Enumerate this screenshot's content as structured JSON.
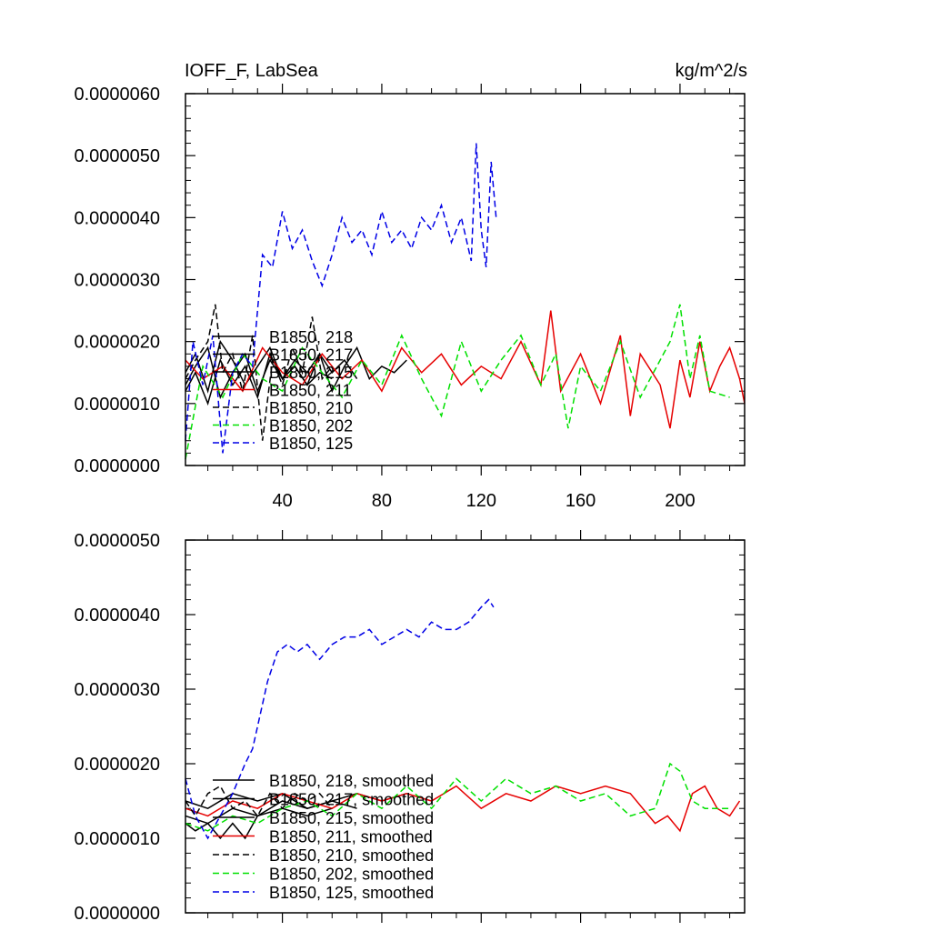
{
  "chart_data": [
    {
      "type": "line",
      "title": "IOFF_F, LabSea",
      "units_label": "kg/m^2/s",
      "xlim": [
        1,
        226
      ],
      "ylim": [
        0,
        6e-06
      ],
      "x_ticks": [
        40,
        80,
        120,
        160,
        200
      ],
      "x_tick_labels": [
        "40",
        "80",
        "120",
        "160",
        "200"
      ],
      "y_ticks": [
        0,
        1e-06,
        2e-06,
        3e-06,
        4e-06,
        5e-06,
        6e-06
      ],
      "y_tick_labels": [
        "0.0000000",
        "0.0000010",
        "0.0000020",
        "0.0000030",
        "0.0000040",
        "0.0000050",
        "0.0000060"
      ],
      "legend_placement": "lower-left",
      "series": [
        {
          "name": "B1850, 218",
          "color": "#000000",
          "dash": "solid",
          "x": [
            1,
            5,
            10,
            15,
            20,
            25,
            30,
            35,
            40,
            45,
            50,
            55,
            60,
            65,
            70,
            75,
            80,
            85,
            90
          ],
          "y": [
            1.5e-06,
            1.8e-06,
            1.2e-06,
            2e-06,
            1.7e-06,
            1.3e-06,
            1.6e-06,
            1.9e-06,
            1.4e-06,
            1.7e-06,
            1.5e-06,
            1.8e-06,
            1.2e-06,
            1.6e-06,
            1.9e-06,
            1.4e-06,
            1.6e-06,
            1.5e-06,
            1.7e-06
          ]
        },
        {
          "name": "B1850, 217",
          "color": "#000000",
          "dash": "solid",
          "x": [
            1,
            5,
            10,
            15,
            20,
            25,
            30,
            35,
            40,
            45,
            50,
            55,
            60,
            65,
            70
          ],
          "y": [
            1.3e-06,
            1.6e-06,
            1.9e-06,
            1.1e-06,
            1.5e-06,
            1.8e-06,
            1.2e-06,
            1.7e-06,
            1.4e-06,
            1.6e-06,
            1.3e-06,
            1.8e-06,
            1.5e-06,
            1.7e-06,
            1.4e-06
          ]
        },
        {
          "name": "B1850, 215",
          "color": "#000000",
          "dash": "solid",
          "x": [
            1,
            5,
            10,
            15,
            20,
            25,
            30,
            35,
            40,
            45,
            50,
            55,
            60
          ],
          "y": [
            1.2e-06,
            1.5e-06,
            1e-06,
            1.7e-06,
            1.3e-06,
            1.6e-06,
            1.1e-06,
            1.8e-06,
            1.4e-06,
            1.6e-06,
            1.3e-06,
            1.5e-06,
            1.4e-06
          ]
        },
        {
          "name": "B1850, 211",
          "color": "#e60000",
          "dash": "solid",
          "x": [
            1,
            8,
            16,
            24,
            32,
            40,
            48,
            56,
            64,
            72,
            80,
            88,
            96,
            104,
            112,
            120,
            128,
            136,
            144,
            148,
            152,
            160,
            168,
            176,
            180,
            184,
            192,
            196,
            200,
            204,
            208,
            212,
            216,
            220,
            224,
            226
          ],
          "y": [
            1.7e-06,
            1.4e-06,
            1.6e-06,
            1.2e-06,
            1.9e-06,
            1.5e-06,
            1.3e-06,
            1.8e-06,
            1.4e-06,
            1.7e-06,
            1.2e-06,
            1.9e-06,
            1.5e-06,
            1.8e-06,
            1.3e-06,
            1.6e-06,
            1.4e-06,
            2e-06,
            1.3e-06,
            2.5e-06,
            1.2e-06,
            1.8e-06,
            1e-06,
            2.1e-06,
            8e-07,
            1.8e-06,
            1.3e-06,
            6e-07,
            1.7e-06,
            1.1e-06,
            2e-06,
            1.2e-06,
            1.6e-06,
            1.9e-06,
            1.4e-06,
            1e-06
          ]
        },
        {
          "name": "B1850, 210",
          "color": "#000000",
          "dash": "dash",
          "x": [
            1,
            5,
            10,
            13,
            16,
            20,
            24,
            28,
            32,
            36,
            40,
            44,
            48,
            52,
            56,
            60
          ],
          "y": [
            1.4e-06,
            1.7e-06,
            2e-06,
            2.6e-06,
            1.5e-06,
            1.8e-06,
            1.2e-06,
            2.1e-06,
            4e-07,
            1.7e-06,
            1.3e-06,
            1.9e-06,
            1.5e-06,
            2.4e-06,
            1.4e-06,
            1.6e-06
          ]
        },
        {
          "name": "B1850, 202",
          "color": "#00e000",
          "dash": "dash",
          "x": [
            1,
            8,
            16,
            24,
            32,
            40,
            48,
            56,
            64,
            72,
            80,
            88,
            96,
            104,
            112,
            120,
            128,
            136,
            144,
            150,
            155,
            160,
            168,
            176,
            184,
            192,
            196,
            200,
            204,
            208,
            212,
            220
          ],
          "y": [
            1e-07,
            1.6e-06,
            1.1e-06,
            1.8e-06,
            1.4e-06,
            1.2e-06,
            1.9e-06,
            1.5e-06,
            1.1e-06,
            1.7e-06,
            1.3e-06,
            2.1e-06,
            1.4e-06,
            8e-07,
            2e-06,
            1.2e-06,
            1.7e-06,
            2.1e-06,
            1.3e-06,
            1.8e-06,
            6e-07,
            1.6e-06,
            1.2e-06,
            2e-06,
            1.1e-06,
            1.7e-06,
            2e-06,
            2.6e-06,
            1.4e-06,
            2.1e-06,
            1.2e-06,
            1.1e-06
          ]
        },
        {
          "name": "B1850, 125",
          "color": "#0000e6",
          "dash": "dash",
          "x": [
            1,
            4,
            8,
            12,
            16,
            20,
            24,
            28,
            32,
            36,
            40,
            44,
            48,
            52,
            56,
            60,
            64,
            68,
            72,
            76,
            80,
            84,
            88,
            92,
            96,
            100,
            104,
            108,
            112,
            116,
            118,
            120,
            122,
            124,
            126
          ],
          "y": [
            4e-07,
            2e-06,
            1.3e-06,
            2.1e-06,
            2e-07,
            1.5e-06,
            1.8e-06,
            1.6e-06,
            3.4e-06,
            3.2e-06,
            4.1e-06,
            3.5e-06,
            3.8e-06,
            3.3e-06,
            2.9e-06,
            3.4e-06,
            4e-06,
            3.6e-06,
            3.8e-06,
            3.4e-06,
            4.1e-06,
            3.6e-06,
            3.8e-06,
            3.5e-06,
            4e-06,
            3.8e-06,
            4.2e-06,
            3.6e-06,
            4e-06,
            3.3e-06,
            5.2e-06,
            3.8e-06,
            3.2e-06,
            4.9e-06,
            4e-06
          ]
        }
      ]
    },
    {
      "type": "line",
      "xlim": [
        1,
        226
      ],
      "ylim": [
        0,
        5e-06
      ],
      "x_ticks": [
        40,
        80,
        120,
        160,
        200
      ],
      "y_ticks": [
        0,
        1e-06,
        2e-06,
        3e-06,
        4e-06,
        5e-06
      ],
      "y_tick_labels": [
        "0.0000000",
        "0.0000010",
        "0.0000020",
        "0.0000030",
        "0.0000040",
        "0.0000050"
      ],
      "legend_placement": "lower-left",
      "series": [
        {
          "name": "B1850, 218, smoothed",
          "color": "#000000",
          "dash": "solid",
          "x": [
            1,
            10,
            20,
            30,
            40,
            50,
            60,
            70,
            80,
            90
          ],
          "y": [
            1.5e-06,
            1.4e-06,
            1.6e-06,
            1.5e-06,
            1.6e-06,
            1.4e-06,
            1.5e-06,
            1.6e-06,
            1.5e-06,
            1.6e-06
          ]
        },
        {
          "name": "B1850, 217, smoothed",
          "color": "#000000",
          "dash": "solid",
          "x": [
            1,
            10,
            20,
            30,
            40,
            50,
            60,
            70
          ],
          "y": [
            1.3e-06,
            1.2e-06,
            1.4e-06,
            1.3e-06,
            1.5e-06,
            1.4e-06,
            1.5e-06,
            1.4e-06
          ]
        },
        {
          "name": "B1850, 215, smoothed",
          "color": "#000000",
          "dash": "solid",
          "x": [
            1,
            5,
            10,
            15,
            20,
            25,
            30,
            40,
            50,
            60
          ],
          "y": [
            1.2e-06,
            1.1e-06,
            1.2e-06,
            1e-06,
            1.2e-06,
            1e-06,
            1.3e-06,
            1.4e-06,
            1.3e-06,
            1.4e-06
          ]
        },
        {
          "name": "B1850, 211, smoothed",
          "color": "#e60000",
          "dash": "solid",
          "x": [
            1,
            10,
            20,
            30,
            40,
            50,
            60,
            70,
            80,
            90,
            100,
            110,
            120,
            130,
            140,
            150,
            160,
            170,
            180,
            190,
            195,
            200,
            205,
            210,
            215,
            220,
            224
          ],
          "y": [
            1.4e-06,
            1.3e-06,
            1.5e-06,
            1.4e-06,
            1.6e-06,
            1.5e-06,
            1.4e-06,
            1.6e-06,
            1.5e-06,
            1.6e-06,
            1.5e-06,
            1.7e-06,
            1.4e-06,
            1.6e-06,
            1.5e-06,
            1.7e-06,
            1.6e-06,
            1.7e-06,
            1.6e-06,
            1.2e-06,
            1.3e-06,
            1.1e-06,
            1.6e-06,
            1.7e-06,
            1.4e-06,
            1.3e-06,
            1.5e-06
          ]
        },
        {
          "name": "B1850, 210, smoothed",
          "color": "#000000",
          "dash": "dash",
          "x": [
            1,
            5,
            10,
            15,
            20,
            25,
            30,
            35,
            40,
            45,
            50,
            55,
            60
          ],
          "y": [
            1.5e-06,
            1.3e-06,
            1.6e-06,
            1.7e-06,
            1.4e-06,
            1.5e-06,
            1.3e-06,
            1.6e-06,
            1.4e-06,
            1.6e-06,
            1.5e-06,
            1.6e-06,
            1.4e-06
          ]
        },
        {
          "name": "B1850, 202, smoothed",
          "color": "#00e000",
          "dash": "dash",
          "x": [
            1,
            10,
            20,
            30,
            40,
            50,
            60,
            70,
            80,
            90,
            100,
            110,
            120,
            130,
            140,
            150,
            160,
            170,
            180,
            190,
            196,
            200,
            205,
            210,
            220
          ],
          "y": [
            1.2e-06,
            1.1e-06,
            1.3e-06,
            1.2e-06,
            1.4e-06,
            1.5e-06,
            1.3e-06,
            1.6e-06,
            1.4e-06,
            1.7e-06,
            1.4e-06,
            1.8e-06,
            1.5e-06,
            1.8e-06,
            1.6e-06,
            1.7e-06,
            1.5e-06,
            1.6e-06,
            1.3e-06,
            1.4e-06,
            2e-06,
            1.9e-06,
            1.5e-06,
            1.4e-06,
            1.4e-06
          ]
        },
        {
          "name": "B1850, 125, smoothed",
          "color": "#0000e6",
          "dash": "dash",
          "x": [
            1,
            5,
            10,
            15,
            20,
            25,
            28,
            30,
            34,
            38,
            42,
            46,
            50,
            55,
            60,
            65,
            70,
            75,
            80,
            85,
            90,
            95,
            100,
            105,
            110,
            115,
            120,
            123,
            125
          ],
          "y": [
            1.8e-06,
            1.3e-06,
            1e-06,
            1.3e-06,
            1.6e-06,
            2e-06,
            2.2e-06,
            2.5e-06,
            3.1e-06,
            3.5e-06,
            3.6e-06,
            3.5e-06,
            3.6e-06,
            3.4e-06,
            3.6e-06,
            3.7e-06,
            3.7e-06,
            3.8e-06,
            3.6e-06,
            3.7e-06,
            3.8e-06,
            3.7e-06,
            3.9e-06,
            3.8e-06,
            3.8e-06,
            3.9e-06,
            4.1e-06,
            4.2e-06,
            4.1e-06
          ]
        }
      ]
    }
  ]
}
